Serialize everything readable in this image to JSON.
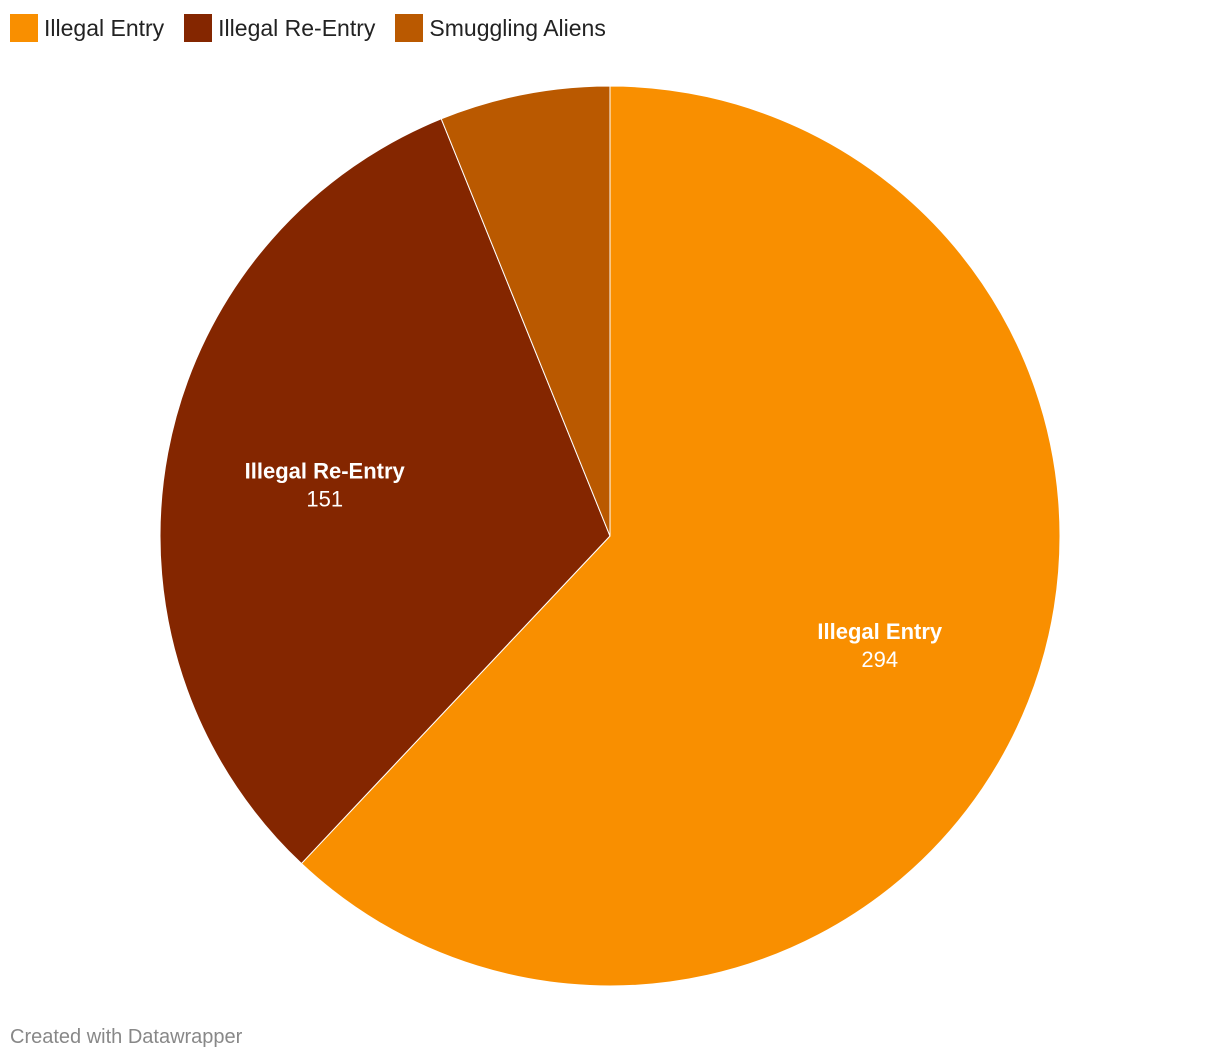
{
  "chart_data": {
    "type": "pie",
    "categories": [
      "Illegal Entry",
      "Illegal Re-Entry",
      "Smuggling Aliens"
    ],
    "values": [
      294,
      151,
      29
    ],
    "colors": [
      "#f98f00",
      "#842600",
      "#ba5900"
    ],
    "label_color": "#ffffff",
    "slice_border_color": "#ffffff",
    "legend_position": "top-left",
    "labels": [
      {
        "name": "Illegal Entry",
        "value": "294"
      },
      {
        "name": "Illegal Re-Entry",
        "value": "151"
      }
    ]
  },
  "legend": {
    "items": [
      {
        "label": "Illegal Entry",
        "color": "#f98f00"
      },
      {
        "label": "Illegal Re-Entry",
        "color": "#842600"
      },
      {
        "label": "Smuggling Aliens",
        "color": "#ba5900"
      }
    ]
  },
  "footer": {
    "text": "Created with Datawrapper"
  }
}
